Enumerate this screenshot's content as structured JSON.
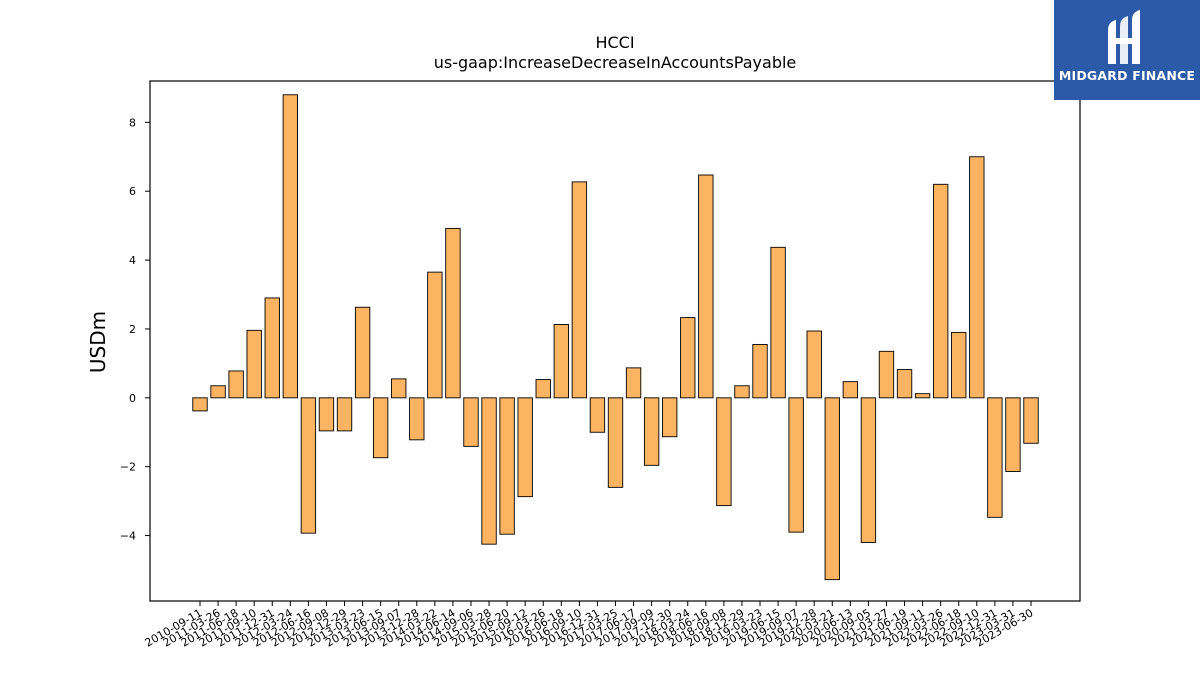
{
  "chart_data": {
    "type": "bar",
    "title": "HCCI",
    "subtitle": "us-gaap:IncreaseDecreaseInAccountsPayable",
    "xlabel": "",
    "ylabel": "USDm",
    "ylim": [
      -5.9,
      9.2
    ],
    "yticks": [
      -4,
      -2,
      0,
      2,
      4,
      6,
      8
    ],
    "grid": false,
    "bar_color": "#fdb462",
    "edge_color": "#000000",
    "categories": [
      "2010-09-11",
      "2011-03-26",
      "2011-06-18",
      "2011-09-10",
      "2011-12-31",
      "2012-03-24",
      "2012-06-16",
      "2012-09-08",
      "2012-12-29",
      "2013-03-23",
      "2013-06-15",
      "2013-09-07",
      "2013-12-28",
      "2014-03-22",
      "2014-06-14",
      "2014-09-06",
      "2015-03-28",
      "2015-06-20",
      "2015-09-12",
      "2016-03-26",
      "2016-06-18",
      "2016-09-10",
      "2016-12-31",
      "2017-03-25",
      "2017-06-17",
      "2017-09-09",
      "2017-12-30",
      "2018-03-24",
      "2018-06-16",
      "2018-09-08",
      "2018-12-29",
      "2019-03-23",
      "2019-06-15",
      "2019-09-07",
      "2019-12-28",
      "2020-03-21",
      "2020-06-13",
      "2020-09-05",
      "2021-03-27",
      "2021-06-19",
      "2021-09-11",
      "2022-03-26",
      "2022-06-18",
      "2022-09-10",
      "2022-12-31",
      "2023-03-31",
      "2023-06-30"
    ],
    "values": [
      -0.38,
      0.35,
      0.78,
      1.96,
      2.9,
      8.8,
      -3.93,
      -0.96,
      -0.96,
      2.63,
      -1.74,
      0.55,
      -1.22,
      3.65,
      4.92,
      -1.41,
      -4.25,
      -3.96,
      -2.87,
      0.53,
      2.13,
      6.27,
      -1.0,
      -2.6,
      0.87,
      -1.96,
      -1.13,
      2.33,
      6.47,
      -3.13,
      0.35,
      1.55,
      4.37,
      -3.9,
      1.94,
      -5.28,
      0.47,
      -4.2,
      1.35,
      0.82,
      0.12,
      6.2,
      1.9,
      7.0,
      -3.47,
      -2.14,
      -1.32
    ]
  },
  "logo": {
    "text": "MIDGARD FINANCE",
    "color": "#2a5aa8"
  }
}
